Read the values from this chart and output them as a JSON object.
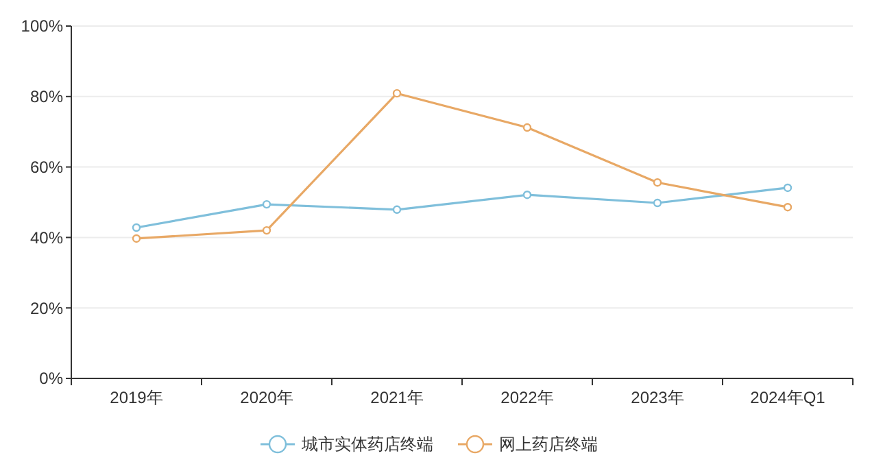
{
  "chart_data": {
    "type": "line",
    "categories": [
      "2019年",
      "2020年",
      "2021年",
      "2022年",
      "2023年",
      "2024年Q1"
    ],
    "series": [
      {
        "name": "城市实体药店终端",
        "color": "#7fbfdb",
        "values": [
          42.8,
          49.4,
          47.9,
          52.1,
          49.8,
          54.1
        ]
      },
      {
        "name": "网上药店终端",
        "color": "#e8a865",
        "values": [
          39.7,
          42.0,
          80.9,
          71.2,
          55.6,
          48.6
        ]
      }
    ],
    "ylim": [
      0,
      100
    ],
    "yticks": [
      {
        "value": 0,
        "label": "0%"
      },
      {
        "value": 20,
        "label": "20%"
      },
      {
        "value": 40,
        "label": "40%"
      },
      {
        "value": 60,
        "label": "60%"
      },
      {
        "value": 80,
        "label": "80%"
      },
      {
        "value": 100,
        "label": "100%"
      }
    ],
    "grid": "y",
    "legend": "bottom",
    "marker": "circle",
    "line_style": "solid"
  }
}
